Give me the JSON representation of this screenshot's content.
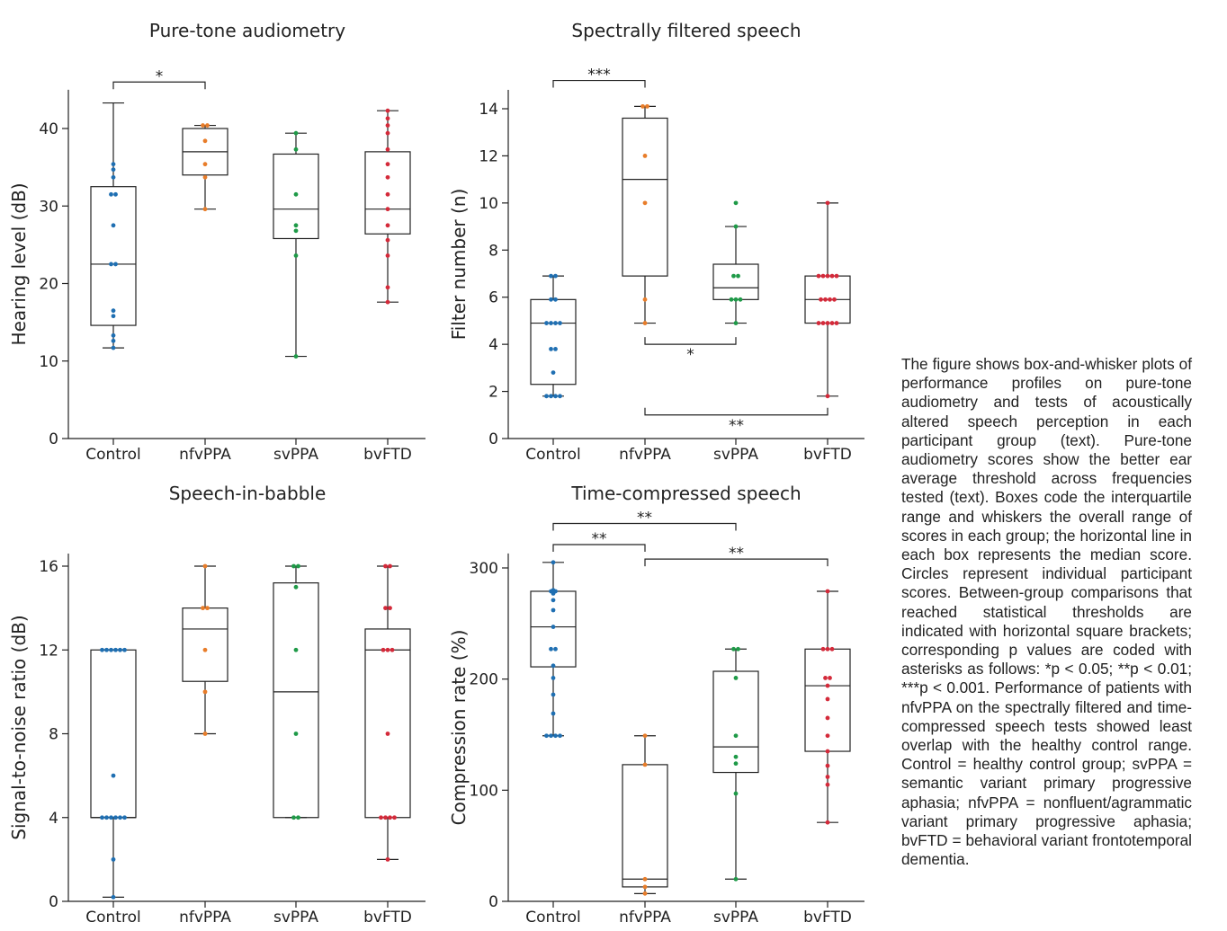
{
  "colors": {
    "Control": "#1f6fb2",
    "nfvPPA": "#e87d2a",
    "svPPA": "#1f9a48",
    "bvFTD": "#d42a3a",
    "axis": "#222222"
  },
  "caption": "The figure shows box-and-whisker plots of performance profiles on pure-tone audiometry and tests of acoustically altered speech perception in each participant group (text). Pure-tone audiometry scores show the better ear average threshold across frequencies tested (text). Boxes code the interquartile range and whiskers the overall range of scores in each group; the horizontal line in each box represents the median score. Circles represent individual participant scores. Between-group comparisons that reached statistical thresholds are indicated with horizontal square brackets; corresponding p values are coded with asterisks as follows: *p < 0.05; **p < 0.01; ***p < 0.001. Performance of patients with nfvPPA on the spectrally filtered and time-compressed speech tests showed least overlap with the healthy control range. Control = healthy control group; svPPA = semantic variant primary progressive aphasia; nfvPPA = nonfluent/agrammatic variant primary progressive aphasia; bvFTD = behavioral variant frontotemporal dementia.",
  "chart_data": [
    {
      "type": "box",
      "title": "Pure-tone audiometry",
      "ylabel": "Hearing level (dB)",
      "ylim": [
        0,
        45
      ],
      "yticks": [
        0,
        10,
        20,
        30,
        40
      ],
      "categories": [
        "Control",
        "nfvPPA",
        "svPPA",
        "bvFTD"
      ],
      "boxes": [
        {
          "min": 11.7,
          "q1": 14.6,
          "median": 22.5,
          "q3": 32.5,
          "max": 43.3
        },
        {
          "min": 29.6,
          "q1": 34.0,
          "median": 37.0,
          "q3": 40.0,
          "max": 40.4
        },
        {
          "min": 10.6,
          "q1": 25.8,
          "median": 29.6,
          "q3": 36.7,
          "max": 39.4
        },
        {
          "min": 17.6,
          "q1": 26.4,
          "median": 29.6,
          "q3": 37.0,
          "max": 42.3
        }
      ],
      "points": [
        [
          11.7,
          12.6,
          13.3,
          15.8,
          16.5,
          22.5,
          22.5,
          27.5,
          31.5,
          31.5,
          33.7,
          34.7,
          35.4
        ],
        [
          29.6,
          33.7,
          35.4,
          38.4,
          40.4,
          40.4
        ],
        [
          10.6,
          23.6,
          26.8,
          27.5,
          31.5,
          37.3,
          39.4
        ],
        [
          17.6,
          19.5,
          23.6,
          25.6,
          27.5,
          29.6,
          31.5,
          33.7,
          35.4,
          37.3,
          39.4,
          40.4,
          41.3,
          42.3
        ]
      ],
      "brackets": [
        {
          "from": 0,
          "to": 1,
          "y": 46.0,
          "label": "*",
          "pos": "above"
        }
      ]
    },
    {
      "type": "box",
      "title": "Spectrally filtered speech",
      "ylabel": "Filter number (n)",
      "ylim": [
        0,
        14.8
      ],
      "yticks": [
        0,
        2,
        4,
        6,
        8,
        10,
        12,
        14
      ],
      "categories": [
        "Control",
        "nfvPPA",
        "svPPA",
        "bvFTD"
      ],
      "boxes": [
        {
          "min": 1.8,
          "q1": 2.3,
          "median": 4.9,
          "q3": 5.9,
          "max": 6.9
        },
        {
          "min": 4.9,
          "q1": 6.9,
          "median": 11.0,
          "q3": 13.6,
          "max": 14.1
        },
        {
          "min": 4.9,
          "q1": 5.9,
          "median": 6.4,
          "q3": 7.4,
          "max": 9.0
        },
        {
          "min": 1.8,
          "q1": 4.9,
          "median": 5.9,
          "q3": 6.9,
          "max": 10.0
        }
      ],
      "points": [
        [
          1.8,
          1.8,
          1.8,
          1.8,
          2.8,
          3.8,
          3.8,
          4.9,
          4.9,
          4.9,
          4.9,
          5.9,
          5.9,
          6.9,
          6.9
        ],
        [
          4.9,
          5.9,
          10.0,
          12.0,
          14.1,
          14.1
        ],
        [
          4.9,
          5.9,
          5.9,
          5.9,
          6.9,
          6.9,
          9.0,
          10.0
        ],
        [
          1.8,
          4.9,
          4.9,
          4.9,
          4.9,
          4.9,
          5.9,
          5.9,
          5.9,
          5.9,
          6.9,
          6.9,
          6.9,
          6.9,
          6.9,
          10.0
        ]
      ],
      "brackets": [
        {
          "from": 0,
          "to": 1,
          "y": 15.2,
          "label": "***",
          "pos": "above"
        },
        {
          "from": 1,
          "to": 2,
          "y": 4.0,
          "label": "*",
          "pos": "below"
        },
        {
          "from": 1,
          "to": 3,
          "y": 1.0,
          "label": "**",
          "pos": "below"
        }
      ]
    },
    {
      "type": "box",
      "title": "Speech-in-babble",
      "ylabel": "Signal-to-noise ratio (dB)",
      "ylim": [
        0,
        16.6
      ],
      "yticks": [
        0,
        4,
        8,
        12,
        16
      ],
      "categories": [
        "Control",
        "nfvPPA",
        "svPPA",
        "bvFTD"
      ],
      "boxes": [
        {
          "min": 0.2,
          "q1": 4.0,
          "median": 4.0,
          "q3": 12.0,
          "max": 12.0
        },
        {
          "min": 8.0,
          "q1": 10.5,
          "median": 13.0,
          "q3": 14.0,
          "max": 16.0
        },
        {
          "min": 4.0,
          "q1": 4.0,
          "median": 10.0,
          "q3": 15.2,
          "max": 16.0
        },
        {
          "min": 2.0,
          "q1": 4.0,
          "median": 12.0,
          "q3": 13.0,
          "max": 16.0
        }
      ],
      "points": [
        [
          0.2,
          2.0,
          4.0,
          4.0,
          4.0,
          4.0,
          4.0,
          4.0,
          6.0,
          12.0,
          12.0,
          12.0,
          12.0,
          12.0,
          12.0
        ],
        [
          8.0,
          10.0,
          12.0,
          14.0,
          14.0,
          16.0
        ],
        [
          4.0,
          4.0,
          8.0,
          12.0,
          15.0,
          16.0,
          16.0
        ],
        [
          2.0,
          4.0,
          4.0,
          4.0,
          4.0,
          8.0,
          12.0,
          12.0,
          12.0,
          14.0,
          14.0,
          16.0,
          16.0
        ]
      ],
      "brackets": []
    },
    {
      "type": "box",
      "title": "Time-compressed speech",
      "ylabel": "Compression rate (%)",
      "ylim": [
        0,
        313
      ],
      "yticks": [
        0,
        100,
        200,
        300
      ],
      "categories": [
        "Control",
        "nfvPPA",
        "svPPA",
        "bvFTD"
      ],
      "boxes": [
        {
          "min": 149,
          "q1": 211,
          "median": 247,
          "q3": 279,
          "max": 305
        },
        {
          "min": 7,
          "q1": 13,
          "median": 20,
          "q3": 123,
          "max": 149
        },
        {
          "min": 20,
          "q1": 116,
          "median": 139,
          "q3": 207,
          "max": 227
        },
        {
          "min": 71,
          "q1": 135,
          "median": 194,
          "q3": 227,
          "max": 279
        }
      ],
      "points": [
        [
          149,
          149,
          149,
          149,
          169,
          186,
          201,
          212,
          227,
          227,
          247,
          262,
          271,
          277,
          279,
          279,
          280,
          305
        ],
        [
          7,
          13,
          20,
          123,
          149
        ],
        [
          20,
          97,
          124,
          130,
          149,
          201,
          227,
          227
        ],
        [
          71,
          105,
          112,
          122,
          135,
          149,
          165,
          182,
          194,
          201,
          201,
          227,
          227,
          227,
          279
        ]
      ],
      "brackets": [
        {
          "from": 0,
          "to": 2,
          "y": 340,
          "label": "**",
          "pos": "above"
        },
        {
          "from": 0,
          "to": 1,
          "y": 321,
          "label": "**",
          "pos": "above"
        },
        {
          "from": 1,
          "to": 3,
          "y": 308,
          "label": "**",
          "pos": "above"
        }
      ]
    }
  ]
}
